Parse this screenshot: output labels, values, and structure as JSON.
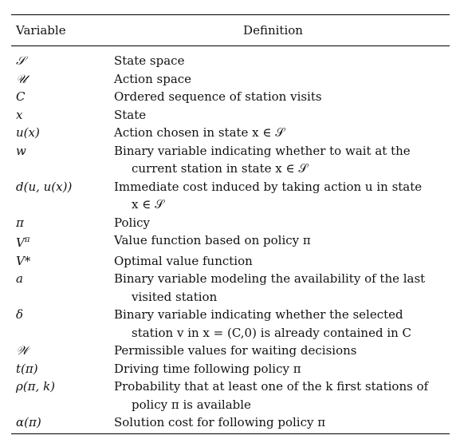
{
  "header": {
    "variable": "Variable",
    "definition": "Definition"
  },
  "rows": [
    {
      "symbol": "𝒮",
      "definition": "State space",
      "continuation": ""
    },
    {
      "symbol": "𝒰",
      "definition": "Action space",
      "continuation": ""
    },
    {
      "symbol": "C",
      "definition": "Ordered sequence of station visits",
      "continuation": ""
    },
    {
      "symbol": "x",
      "definition": "State",
      "continuation": ""
    },
    {
      "symbol": "u(x)",
      "definition": "Action chosen in state x ∈ 𝒮",
      "continuation": ""
    },
    {
      "symbol": "w",
      "definition": "Binary variable indicating whether to wait at the",
      "continuation": "current station in state x ∈ 𝒮"
    },
    {
      "symbol": "d(u, u(x))",
      "definition": "Immediate cost induced by taking action u in state",
      "continuation": "x ∈ 𝒮"
    },
    {
      "symbol": "π",
      "definition": "Policy",
      "continuation": ""
    },
    {
      "symbol": "Vπ",
      "definition": "Value function based on policy π",
      "continuation": ""
    },
    {
      "symbol": "V*",
      "definition": "Optimal value function",
      "continuation": ""
    },
    {
      "symbol": "a",
      "definition": "Binary variable modeling the availability of the last",
      "continuation": "visited station"
    },
    {
      "symbol": "δ",
      "definition": "Binary variable indicating whether the selected",
      "continuation": "station v in x = (C,0) is already contained in C"
    },
    {
      "symbol": "𝒲",
      "definition": "Permissible values for waiting decisions",
      "continuation": ""
    },
    {
      "symbol": "t(π)",
      "definition": "Driving time following policy π",
      "continuation": ""
    },
    {
      "symbol": "ρ(π, k)",
      "definition": "Probability that at least one of the k first stations of",
      "continuation": "policy π is available"
    },
    {
      "symbol": "α(π)",
      "definition": "Solution cost for following policy π",
      "continuation": ""
    }
  ]
}
